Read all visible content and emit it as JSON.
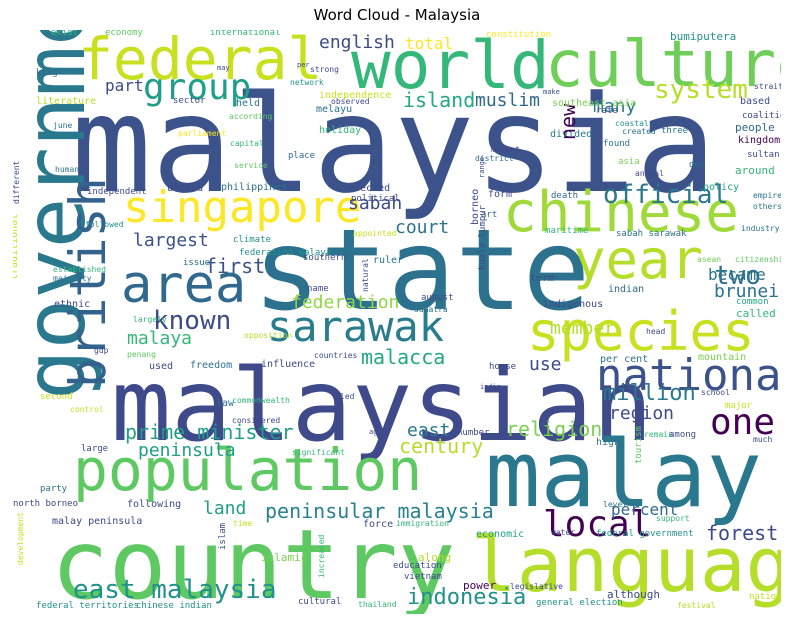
{
  "title": "Word Cloud - Malaysia",
  "words": [
    {
      "text": "malaysia",
      "color": "#3b528b"
    },
    {
      "text": "state",
      "color": "#2c728e"
    },
    {
      "text": "malaysian",
      "color": "#3e4a89"
    },
    {
      "text": "country",
      "color": "#5ec962"
    },
    {
      "text": "malay",
      "color": "#2a788e"
    },
    {
      "text": "government",
      "color": "#2a788e"
    },
    {
      "text": "language",
      "color": "#b5de2b"
    },
    {
      "text": "population",
      "color": "#5ec962"
    },
    {
      "text": "world",
      "color": "#35b779"
    },
    {
      "text": "culture",
      "color": "#6ece58"
    },
    {
      "text": "chinese",
      "color": "#9fda3a"
    },
    {
      "text": "federal",
      "color": "#c8e020"
    },
    {
      "text": "species",
      "color": "#c8e020"
    },
    {
      "text": "sarawak",
      "color": "#287c8e"
    },
    {
      "text": "area",
      "color": "#31688e"
    },
    {
      "text": "year",
      "color": "#b5de2b"
    },
    {
      "text": "british",
      "color": "#33638d"
    },
    {
      "text": "singapore",
      "color": "#fde725"
    },
    {
      "text": "national",
      "color": "#3b528b"
    },
    {
      "text": "group",
      "color": "#1f9e89"
    },
    {
      "text": "local",
      "color": "#440154"
    },
    {
      "text": "one",
      "color": "#440154"
    },
    {
      "text": "peninsular malaysia",
      "color": "#26828e"
    },
    {
      "text": "east malaysia",
      "color": "#21918c"
    },
    {
      "text": "language2",
      "color": "#b5de2b"
    },
    {
      "text": "official",
      "color": "#2a788e"
    },
    {
      "text": "known",
      "color": "#3e4a89"
    },
    {
      "text": "system",
      "color": "#b5de2b"
    },
    {
      "text": "indonesia",
      "color": "#21918c"
    },
    {
      "text": "two",
      "color": "#2c728e"
    },
    {
      "text": "prime minister",
      "color": "#1f9e89"
    },
    {
      "text": "forest",
      "color": "#3e4a89"
    },
    {
      "text": "million",
      "color": "#2a788e"
    },
    {
      "text": "religion",
      "color": "#7ad151"
    },
    {
      "text": "century",
      "color": "#b5de2b"
    },
    {
      "text": "malacca",
      "color": "#22a884"
    },
    {
      "text": "island",
      "color": "#22a884"
    },
    {
      "text": "muslim",
      "color": "#31688e"
    },
    {
      "text": "english",
      "color": "#3e4a89"
    },
    {
      "text": "largest",
      "color": "#3b528b"
    },
    {
      "text": "federation",
      "color": "#8fd744"
    },
    {
      "text": "member",
      "color": "#b5de2b"
    },
    {
      "text": "became",
      "color": "#2c728e"
    },
    {
      "text": "brunei",
      "color": "#2c728e"
    },
    {
      "text": "court",
      "color": "#2c728e"
    },
    {
      "text": "sabah",
      "color": "#3e4a89"
    },
    {
      "text": "first",
      "color": "#3b528b"
    },
    {
      "text": "malaya",
      "color": "#35b779"
    },
    {
      "text": "region",
      "color": "#3e4a89"
    },
    {
      "text": "east",
      "color": "#2a788e"
    },
    {
      "text": "peninsula",
      "color": "#1f9e89"
    },
    {
      "text": "land",
      "color": "#1f9e89"
    },
    {
      "text": "percent",
      "color": "#31688e"
    },
    {
      "text": "use",
      "color": "#3e4a89"
    },
    {
      "text": "total",
      "color": "#fde725"
    },
    {
      "text": "many",
      "color": "#2a788e"
    },
    {
      "text": "part",
      "color": "#3e4a89"
    },
    {
      "text": "new",
      "color": "#440154"
    }
  ],
  "small_words": [
    {
      "text": "bumiputera",
      "color": "#21918c"
    },
    {
      "text": "constitution",
      "color": "#fde725"
    },
    {
      "text": "international",
      "color": "#35b779"
    },
    {
      "text": "economy",
      "color": "#5ec962"
    },
    {
      "text": "exist",
      "color": "#35b779"
    },
    {
      "text": "king",
      "color": "#31688e"
    },
    {
      "text": "literature",
      "color": "#b5de2b"
    },
    {
      "text": "sector",
      "color": "#3e4a89"
    },
    {
      "text": "held",
      "color": "#2c728e"
    },
    {
      "text": "melayu",
      "color": "#2c728e"
    },
    {
      "text": "independence",
      "color": "#c8e020"
    },
    {
      "text": "network",
      "color": "#21918c"
    },
    {
      "text": "observed",
      "color": "#3e4a89"
    },
    {
      "text": "southeast asia",
      "color": "#7ad151"
    },
    {
      "text": "based",
      "color": "#3e4a89"
    },
    {
      "text": "coalition",
      "color": "#3e4a89"
    },
    {
      "text": "people",
      "color": "#31688e"
    },
    {
      "text": "kingdom",
      "color": "#440154"
    },
    {
      "text": "sultan",
      "color": "#3e4a89"
    },
    {
      "text": "around",
      "color": "#35b779"
    },
    {
      "text": "policy",
      "color": "#1f9e89"
    },
    {
      "text": "empire",
      "color": "#2c728e"
    },
    {
      "text": "others",
      "color": "#2a788e"
    },
    {
      "text": "industry",
      "color": "#2c728e"
    },
    {
      "text": "citizenship",
      "color": "#5ec962"
    },
    {
      "text": "divided",
      "color": "#2a788e"
    },
    {
      "text": "according",
      "color": "#5ec962"
    },
    {
      "text": "place",
      "color": "#31688e"
    },
    {
      "text": "holiday",
      "color": "#35b779"
    },
    {
      "text": "coastal",
      "color": "#21918c"
    },
    {
      "text": "created",
      "color": "#2c728e"
    },
    {
      "text": "three",
      "color": "#2c728e"
    },
    {
      "text": "found",
      "color": "#2a788e"
    },
    {
      "text": "district",
      "color": "#2c728e"
    },
    {
      "text": "market",
      "color": "#3e4a89"
    },
    {
      "text": "due",
      "color": "#2c728e"
    },
    {
      "text": "asia",
      "color": "#7ad151"
    },
    {
      "text": "capital",
      "color": "#35b779"
    },
    {
      "text": "service",
      "color": "#5ec962"
    },
    {
      "text": "parliament",
      "color": "#fde725"
    },
    {
      "text": "june",
      "color": "#2c728e"
    },
    {
      "text": "human",
      "color": "#2a788e"
    },
    {
      "text": "independent",
      "color": "#3e4a89"
    },
    {
      "text": "united",
      "color": "#3e4a89"
    },
    {
      "text": "philippines",
      "color": "#2c728e"
    },
    {
      "text": "elected",
      "color": "#3e4a89"
    },
    {
      "text": "political",
      "color": "#3e4a89"
    },
    {
      "text": "form",
      "color": "#3e4a89"
    },
    {
      "text": "death",
      "color": "#31688e"
    },
    {
      "text": "art",
      "color": "#31688e"
    },
    {
      "text": "followed",
      "color": "#21918c"
    },
    {
      "text": "federation malaya",
      "color": "#21918c"
    },
    {
      "text": "climate",
      "color": "#21918c"
    },
    {
      "text": "appointed",
      "color": "#c8e020"
    },
    {
      "text": "maritime",
      "color": "#35b779"
    },
    {
      "text": "sabah sarawak",
      "color": "#2c728e"
    },
    {
      "text": "asean",
      "color": "#7ad151"
    },
    {
      "text": "established",
      "color": "#35b779"
    },
    {
      "text": "majority",
      "color": "#2c728e"
    },
    {
      "text": "issue",
      "color": "#2c728e"
    },
    {
      "text": "southern",
      "color": "#3e4a89"
    },
    {
      "text": "ruler",
      "color": "#2c728e"
    },
    {
      "text": "term",
      "color": "#3e4a89"
    },
    {
      "text": "indian",
      "color": "#31688e"
    },
    {
      "text": "indigenous",
      "color": "#3e4a89"
    },
    {
      "text": "august",
      "color": "#3e4a89"
    },
    {
      "text": "sumatra",
      "color": "#2c728e"
    },
    {
      "text": "name",
      "color": "#3e4a89"
    },
    {
      "text": "ethnic",
      "color": "#3e4a89"
    },
    {
      "text": "largely",
      "color": "#35b779"
    },
    {
      "text": "penang",
      "color": "#5ec962"
    },
    {
      "text": "opposition",
      "color": "#b5de2b"
    },
    {
      "text": "common",
      "color": "#22a884"
    },
    {
      "text": "called",
      "color": "#35b779"
    },
    {
      "text": "head",
      "color": "#3e4a89"
    },
    {
      "text": "gdp",
      "color": "#3e4a89"
    },
    {
      "text": "used",
      "color": "#3e4a89"
    },
    {
      "text": "freedom",
      "color": "#2c728e"
    },
    {
      "text": "influence",
      "color": "#3e4a89"
    },
    {
      "text": "countries",
      "color": "#3e4a89"
    },
    {
      "text": "house",
      "color": "#3e4a89"
    },
    {
      "text": "per cent",
      "color": "#2c728e"
    },
    {
      "text": "mountain",
      "color": "#7ad151"
    },
    {
      "text": "second",
      "color": "#c8e020"
    },
    {
      "text": "control",
      "color": "#c8e020"
    },
    {
      "text": "law",
      "color": "#2c728e"
    },
    {
      "text": "led",
      "color": "#3e4a89"
    },
    {
      "text": "school",
      "color": "#3e4a89"
    },
    {
      "text": "major",
      "color": "#c8e020"
    },
    {
      "text": "number",
      "color": "#3e4a89"
    },
    {
      "text": "remain",
      "color": "#35b779"
    },
    {
      "text": "among",
      "color": "#3e4a89"
    },
    {
      "text": "much",
      "color": "#3e4a89"
    },
    {
      "text": "high",
      "color": "#2c728e"
    },
    {
      "text": "large",
      "color": "#3e4a89"
    },
    {
      "text": "significant",
      "color": "#35b779"
    },
    {
      "text": "party",
      "color": "#2c728e"
    },
    {
      "text": "following",
      "color": "#3e4a89"
    },
    {
      "text": "north borneo",
      "color": "#3e4a89"
    },
    {
      "text": "malay peninsula",
      "color": "#3e4a89"
    },
    {
      "text": "force",
      "color": "#3e4a89"
    },
    {
      "text": "immigration",
      "color": "#35b779"
    },
    {
      "text": "economic",
      "color": "#1f9e89"
    },
    {
      "text": "water",
      "color": "#3e4a89"
    },
    {
      "text": "federal government",
      "color": "#21918c"
    },
    {
      "text": "level",
      "color": "#2c728e"
    },
    {
      "text": "support",
      "color": "#35b779"
    },
    {
      "text": "time",
      "color": "#c8e020"
    },
    {
      "text": "along",
      "color": "#b5de2b"
    },
    {
      "text": "education",
      "color": "#3e4a89"
    },
    {
      "text": "vietnam",
      "color": "#3e4a89"
    },
    {
      "text": "islamic",
      "color": "#7ad151"
    },
    {
      "text": "power",
      "color": "#440154"
    },
    {
      "text": "legislative",
      "color": "#3e4a89"
    },
    {
      "text": "although",
      "color": "#3e4a89"
    },
    {
      "text": "general election",
      "color": "#21918c"
    },
    {
      "text": "festival",
      "color": "#b5de2b"
    },
    {
      "text": "nation",
      "color": "#c8e020"
    },
    {
      "text": "federal territories",
      "color": "#21918c"
    },
    {
      "text": "chinese indian",
      "color": "#21918c"
    },
    {
      "text": "cultural",
      "color": "#3e4a89"
    },
    {
      "text": "thailand",
      "color": "#35b779"
    },
    {
      "text": "islam",
      "color": "#3e4a89"
    },
    {
      "text": "development",
      "color": "#c8e020"
    },
    {
      "text": "increased",
      "color": "#35b779"
    },
    {
      "text": "kuala lumpur",
      "color": "#3e4a89"
    },
    {
      "text": "traditional",
      "color": "#c8e020"
    },
    {
      "text": "different",
      "color": "#3e4a89"
    },
    {
      "text": "tourism",
      "color": "#5ec962"
    },
    {
      "text": "natural",
      "color": "#3e4a89"
    },
    {
      "text": "borneo",
      "color": "#3e4a89"
    },
    {
      "text": "animal",
      "color": "#3e4a89"
    },
    {
      "text": "strait",
      "color": "#3e4a89"
    },
    {
      "text": "rate",
      "color": "#3e4a89"
    },
    {
      "text": "make",
      "color": "#3e4a89"
    },
    {
      "text": "strong",
      "color": "#3e4a89"
    },
    {
      "text": "per",
      "color": "#3e4a89"
    },
    {
      "text": "may",
      "color": "#3e4a89"
    },
    {
      "text": "commonwealth",
      "color": "#35b779"
    },
    {
      "text": "considered",
      "color": "#3e4a89"
    },
    {
      "text": "india",
      "color": "#3e4a89"
    },
    {
      "text": "range",
      "color": "#3e4a89"
    },
    {
      "text": "age",
      "color": "#3e4a89"
    }
  ]
}
